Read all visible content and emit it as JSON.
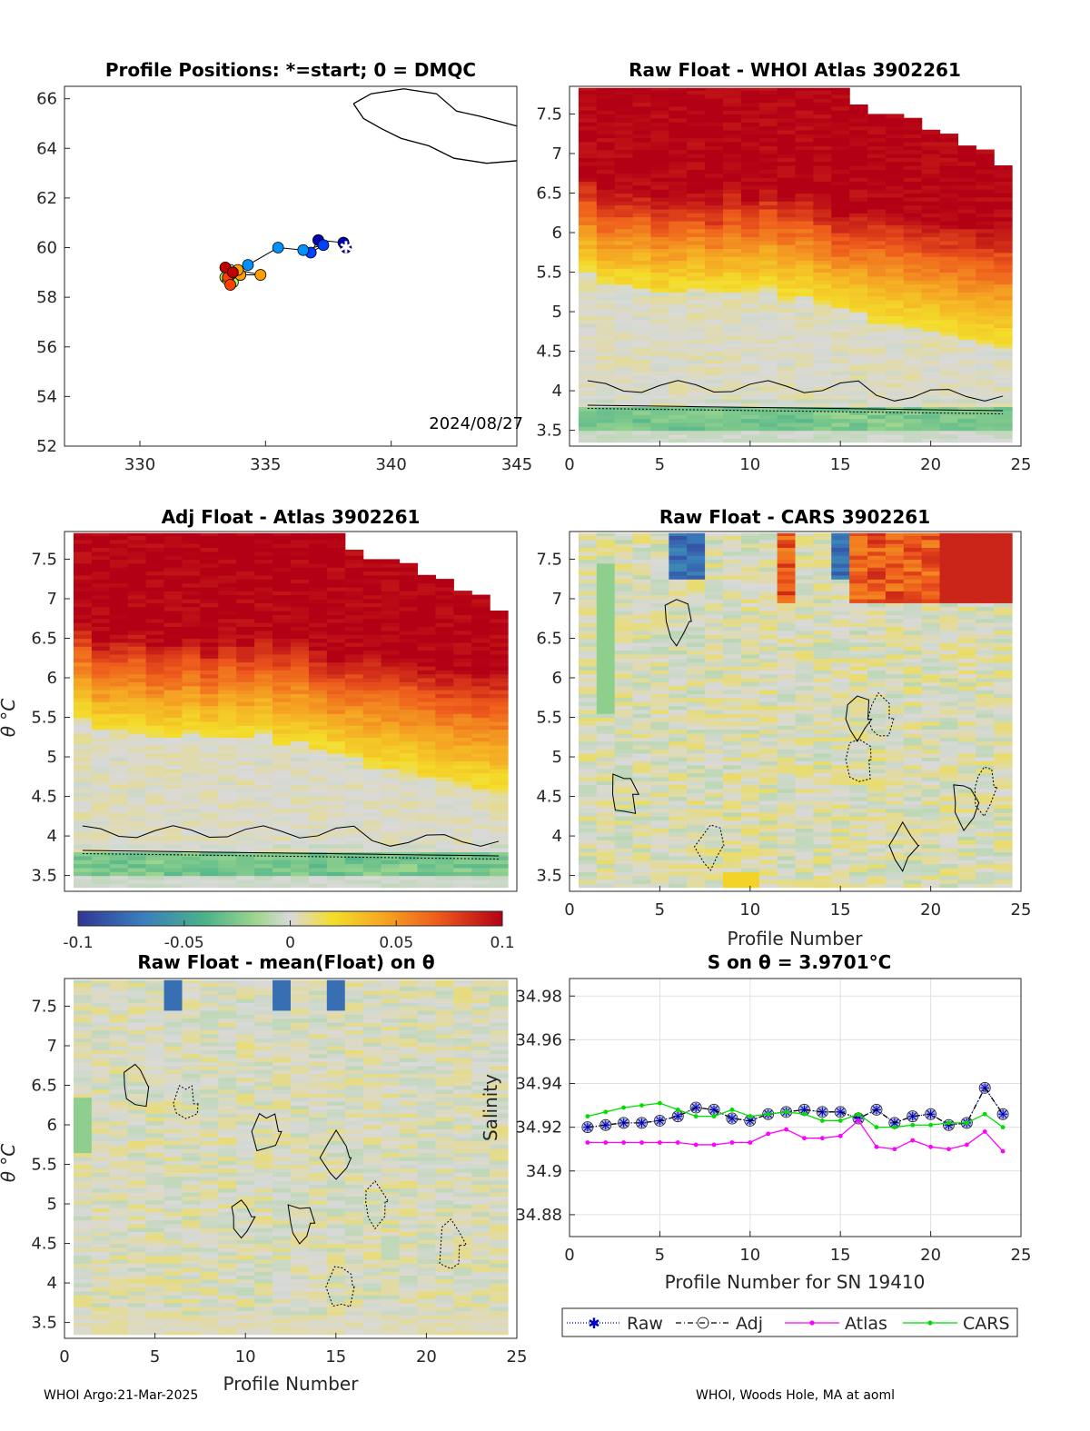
{
  "footer": {
    "left": "WHOI Argo:21-Mar-2025",
    "right": "WHOI, Woods Hole, MA at aoml"
  },
  "colors": {
    "map_line": "#000000",
    "raw_line": "#0000cc",
    "adj_line": "#000000",
    "atlas_line": "#ff00ff",
    "cars_line": "#00dd00",
    "colormap": [
      "#313695",
      "#3a7dbb",
      "#4bb38a",
      "#9fd68f",
      "#d9d9d9",
      "#f4de2a",
      "#f5a623",
      "#ee5a1c",
      "#b30015"
    ]
  },
  "chart_data": [
    {
      "id": "positions",
      "type": "scatter",
      "title": "Profile Positions: *=start; 0 = DMQC",
      "xlim": [
        327,
        345
      ],
      "ylim": [
        52,
        66.5
      ],
      "xticks": [
        "330",
        "335",
        "340",
        "345"
      ],
      "yticks": [
        "52",
        "54",
        "56",
        "58",
        "60",
        "62",
        "64",
        "66"
      ],
      "annotation": "2024/08/27",
      "track_lon": [
        338.2,
        338.1,
        337.1,
        336.8,
        337.3,
        336.5,
        335.5,
        334.3,
        333.9,
        333.5,
        333.7,
        334.0,
        333.6,
        333.4,
        333.7,
        333.5,
        333.6,
        334.0,
        334.8,
        333.9,
        333.5,
        333.6,
        333.4,
        333.7
      ],
      "track_lat": [
        60.0,
        60.2,
        60.3,
        59.8,
        60.1,
        59.9,
        60.0,
        59.3,
        59.0,
        58.9,
        58.8,
        58.9,
        59.1,
        58.8,
        58.6,
        58.7,
        58.9,
        58.9,
        58.9,
        59.1,
        58.8,
        58.5,
        59.2,
        59.0
      ],
      "start_marker": [
        338.2,
        60.0
      ],
      "coastline_note": "coastline outline"
    },
    {
      "id": "raw-atlas",
      "type": "heatmap",
      "title": "Raw Float - WHOI Atlas  3902261",
      "xlim": [
        0,
        25
      ],
      "ylim": [
        3.3,
        7.85
      ],
      "xticks": [
        "0",
        "5",
        "10",
        "15",
        "20",
        "25"
      ],
      "yticks": [
        "3.5",
        "4",
        "4.5",
        "5",
        "5.5",
        "6",
        "6.5",
        "7",
        "7.5"
      ],
      "max_theta": [
        7.83,
        7.83,
        7.83,
        7.83,
        7.83,
        7.83,
        7.83,
        7.83,
        7.83,
        7.83,
        7.83,
        7.83,
        7.83,
        7.83,
        7.83,
        7.62,
        7.5,
        7.5,
        7.45,
        7.3,
        7.25,
        7.1,
        7.05,
        6.85
      ],
      "top_band": [
        6.65,
        6.4,
        6.45,
        6.5,
        6.35,
        6.4,
        6.45,
        6.3,
        6.5,
        6.35,
        6.5,
        6.4,
        6.45,
        6.3,
        6.15,
        6.2,
        6.25,
        6.2,
        6.15,
        6.1,
        6.05,
        6.05,
        6.0,
        6.0
      ],
      "mid_band": [
        5.45,
        5.3,
        5.3,
        5.25,
        5.2,
        5.2,
        5.25,
        5.2,
        5.2,
        5.2,
        5.25,
        5.1,
        5.15,
        5.05,
        5.0,
        4.95,
        4.8,
        4.8,
        4.75,
        4.7,
        4.65,
        4.6,
        4.55,
        4.5
      ],
      "green_band": [
        3.75,
        3.45
      ],
      "contours": [
        "solid",
        "dotted"
      ]
    },
    {
      "id": "adj-atlas",
      "type": "heatmap",
      "title": "Adj Float - Atlas  3902261",
      "xlim": [
        0,
        25
      ],
      "ylim": [
        3.3,
        7.85
      ],
      "yticks": [
        "3.5",
        "4",
        "4.5",
        "5",
        "5.5",
        "6",
        "6.5",
        "7",
        "7.5"
      ],
      "ylabel": "θ °C",
      "max_theta": [
        7.83,
        7.83,
        7.83,
        7.83,
        7.83,
        7.83,
        7.83,
        7.83,
        7.83,
        7.83,
        7.83,
        7.83,
        7.83,
        7.83,
        7.83,
        7.62,
        7.5,
        7.5,
        7.45,
        7.3,
        7.25,
        7.1,
        7.05,
        6.85
      ],
      "top_band": [
        6.65,
        6.4,
        6.45,
        6.5,
        6.35,
        6.4,
        6.45,
        6.3,
        6.5,
        6.35,
        6.5,
        6.4,
        6.45,
        6.3,
        6.15,
        6.2,
        6.25,
        6.2,
        6.15,
        6.1,
        6.05,
        6.05,
        6.0,
        6.0
      ],
      "mid_band": [
        5.45,
        5.3,
        5.3,
        5.25,
        5.2,
        5.2,
        5.25,
        5.2,
        5.2,
        5.2,
        5.25,
        5.1,
        5.15,
        5.05,
        5.0,
        4.95,
        4.8,
        4.8,
        4.75,
        4.7,
        4.65,
        4.6,
        4.55,
        4.5
      ],
      "green_band": [
        3.75,
        3.45
      ]
    },
    {
      "id": "raw-cars",
      "type": "heatmap",
      "title": "Raw Float - CARS  3902261",
      "xlim": [
        0,
        25
      ],
      "ylim": [
        3.3,
        7.85
      ],
      "xticks": [
        "0",
        "5",
        "10",
        "15",
        "20",
        "25"
      ],
      "yticks": [
        "3.5",
        "4",
        "4.5",
        "5",
        "5.5",
        "6",
        "6.5",
        "7",
        "7.5"
      ],
      "xlabel": "Profile Number",
      "max_theta": [
        7.83,
        7.83,
        7.83,
        7.83,
        7.83,
        7.83,
        7.83,
        7.83,
        7.83,
        7.83,
        7.83,
        7.83,
        7.83,
        7.83,
        7.83,
        7.83,
        7.83,
        7.83,
        7.83,
        7.83,
        7.83,
        7.83,
        7.83,
        7.83
      ],
      "blue_columns": [
        6,
        7,
        15
      ],
      "warm_columns": [
        12,
        16,
        17,
        18,
        19,
        20,
        21,
        22,
        23,
        24
      ]
    },
    {
      "id": "colorbar",
      "type": "heatmap",
      "ticks": [
        "-0.1",
        "-0.05",
        "0",
        "0.05",
        "0.1"
      ],
      "range": [
        -0.1,
        0.1
      ]
    },
    {
      "id": "raw-mean",
      "type": "heatmap",
      "title": "Raw Float - mean(Float) on θ",
      "xlim": [
        0,
        25
      ],
      "ylim": [
        3.3,
        7.85
      ],
      "xticks": [
        "0",
        "5",
        "10",
        "15",
        "20",
        "25"
      ],
      "yticks": [
        "3.5",
        "4",
        "4.5",
        "5",
        "5.5",
        "6",
        "6.5",
        "7",
        "7.5"
      ],
      "xlabel": "Profile Number",
      "ylabel": "θ °C",
      "blue_columns": [
        6,
        12,
        15
      ]
    },
    {
      "id": "salinity",
      "type": "line",
      "title": "S on θ = 3.9701°C",
      "xlabel": "Profile Number for SN 19410",
      "ylabel": "Salinity",
      "xlim": [
        0,
        25
      ],
      "ylim": [
        34.87,
        34.988
      ],
      "xticks": [
        "0",
        "5",
        "10",
        "15",
        "20",
        "25"
      ],
      "yticks": [
        "34.88",
        "34.9",
        "34.92",
        "34.94",
        "34.96",
        "34.98"
      ],
      "grid": true,
      "legend": "bottom",
      "x": [
        1,
        2,
        3,
        4,
        5,
        6,
        7,
        8,
        9,
        10,
        11,
        12,
        13,
        14,
        15,
        16,
        17,
        18,
        19,
        20,
        21,
        22,
        23,
        24
      ],
      "series": [
        {
          "name": "Raw",
          "values": [
            34.92,
            34.921,
            34.922,
            34.922,
            34.923,
            34.925,
            34.929,
            34.928,
            34.924,
            34.923,
            34.926,
            34.927,
            34.928,
            34.927,
            34.927,
            34.924,
            34.928,
            34.922,
            34.925,
            34.926,
            34.921,
            34.922,
            34.938,
            34.926
          ]
        },
        {
          "name": "Adj",
          "values": [
            34.92,
            34.921,
            34.922,
            34.922,
            34.923,
            34.925,
            34.929,
            34.928,
            34.924,
            34.923,
            34.926,
            34.927,
            34.928,
            34.927,
            34.927,
            34.924,
            34.928,
            34.922,
            34.925,
            34.926,
            34.921,
            34.922,
            34.938,
            34.926
          ]
        },
        {
          "name": "Atlas",
          "values": [
            34.913,
            34.913,
            34.913,
            34.913,
            34.913,
            34.913,
            34.912,
            34.912,
            34.913,
            34.913,
            34.917,
            34.919,
            34.915,
            34.915,
            34.916,
            34.923,
            34.911,
            34.91,
            34.914,
            34.911,
            34.91,
            34.912,
            34.918,
            34.909
          ]
        },
        {
          "name": "CARS",
          "values": [
            34.925,
            34.927,
            34.929,
            34.93,
            34.931,
            34.928,
            34.925,
            34.925,
            34.928,
            34.925,
            34.926,
            34.927,
            34.926,
            34.923,
            34.923,
            34.926,
            34.92,
            34.92,
            34.921,
            34.921,
            34.922,
            34.922,
            34.926,
            34.92
          ]
        }
      ]
    }
  ]
}
